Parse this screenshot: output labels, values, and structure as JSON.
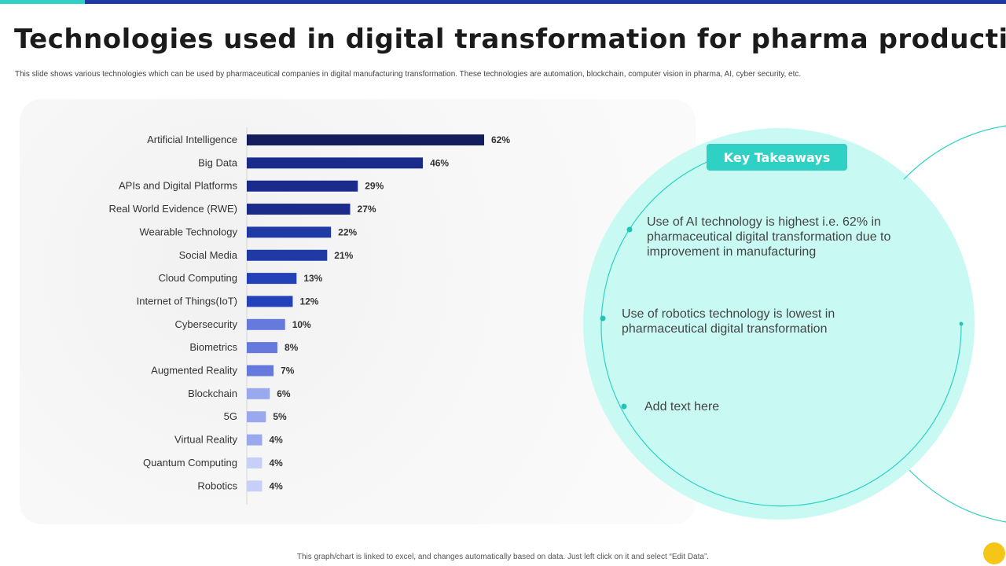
{
  "slide": {
    "title": "Technologies used in digital transformation for pharma production",
    "subtitle": "This slide shows various technologies which can be used by pharmaceutical companies in digital manufacturing transformation. These technologies are automation, blockchain, computer vision in pharma, AI, cyber security, etc.",
    "footnote": "This graph/chart is linked to excel, and changes automatically based on data. Just left click on it and select “Edit Data”.",
    "colors": {
      "accent": "#2ed1c3",
      "brand_blue": "#1f3aa5",
      "panel_teal": "#c8faf3",
      "yellow": "#f5c518"
    }
  },
  "chart_data": {
    "type": "bar",
    "orientation": "horizontal",
    "categories": [
      "Artificial Intelligence",
      "Big Data",
      "APIs and Digital Platforms",
      "Real World Evidence (RWE)",
      "Wearable Technology",
      "Social Media",
      "Cloud Computing",
      "Internet of Things(IoT)",
      "Cybersecurity",
      "Biometrics",
      "Augmented Reality",
      "Blockchain",
      "5G",
      "Virtual Reality",
      "Quantum Computing",
      "Robotics"
    ],
    "values": [
      62,
      46,
      29,
      27,
      22,
      21,
      13,
      12,
      10,
      8,
      7,
      6,
      5,
      4,
      4,
      4
    ],
    "data_labels": [
      "62%",
      "46%",
      "29%",
      "27%",
      "22%",
      "21%",
      "13%",
      "12%",
      "10%",
      "8%",
      "7%",
      "6%",
      "5%",
      "4%",
      "4%",
      "4%"
    ],
    "bar_colors": [
      "#141e5e",
      "#1a2b8c",
      "#1a2b8c",
      "#1a2b8c",
      "#1f3aa5",
      "#1f3aa5",
      "#2341b9",
      "#2341b9",
      "#6679dd",
      "#6679dd",
      "#6679dd",
      "#9aa9ee",
      "#9aa9ee",
      "#9aa9ee",
      "#c6d0f6",
      "#c6d0f6"
    ],
    "xlim": [
      0,
      62
    ],
    "grid": false,
    "legend": "none"
  },
  "takeaways": {
    "header": "Key Takeaways",
    "items": [
      "Use of AI technology  is highest i.e. 62% in pharmaceutical digital transformation  due to improvement  in manufacturing",
      "Use of robotics technology  is lowest in pharmaceutical digital transformation",
      "Add text here"
    ]
  }
}
